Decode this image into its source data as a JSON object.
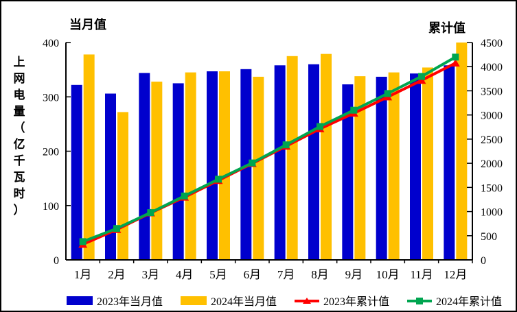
{
  "figure": {
    "left_title": "当月值",
    "right_title": "累计值",
    "y_axis_label": "上网电量（亿千瓦时）"
  },
  "chart_data": {
    "type": "combo-bar-line",
    "title": "",
    "categories": [
      "1月",
      "2月",
      "3月",
      "4月",
      "5月",
      "6月",
      "7月",
      "8月",
      "9月",
      "10月",
      "11月",
      "12月"
    ],
    "left_axis": {
      "label": "当月值",
      "min": 0,
      "max": 400,
      "tick_step": 100,
      "ticks": [
        0,
        100,
        200,
        300,
        400
      ]
    },
    "right_axis": {
      "label": "累计值",
      "min": 0,
      "max": 4500,
      "tick_step": 500,
      "ticks": [
        0,
        500,
        1000,
        1500,
        2000,
        2500,
        3000,
        3500,
        4000,
        4500
      ]
    },
    "grid": false,
    "legend_position": "bottom",
    "series": [
      {
        "name": "2023年当月值",
        "type": "bar",
        "axis": "left",
        "color": "#0000CD",
        "values": [
          322,
          306,
          344,
          325,
          347,
          351,
          358,
          360,
          323,
          337,
          343,
          358
        ]
      },
      {
        "name": "2024年当月值",
        "type": "bar",
        "axis": "left",
        "color": "#FFC000",
        "values": [
          378,
          272,
          328,
          345,
          347,
          337,
          375,
          379,
          338,
          345,
          354,
          400
        ]
      },
      {
        "name": "2023年累计值",
        "type": "line",
        "axis": "right",
        "color": "#FF0000",
        "marker": "triangle",
        "values": [
          322,
          628,
          972,
          1297,
          1644,
          1995,
          2353,
          2713,
          3036,
          3373,
          3716,
          4074
        ]
      },
      {
        "name": "2024年累计值",
        "type": "line",
        "axis": "right",
        "color": "#00A550",
        "marker": "square",
        "values": [
          378,
          650,
          978,
          1323,
          1670,
          2007,
          2382,
          2761,
          3099,
          3444,
          3798,
          4198
        ]
      }
    ]
  }
}
